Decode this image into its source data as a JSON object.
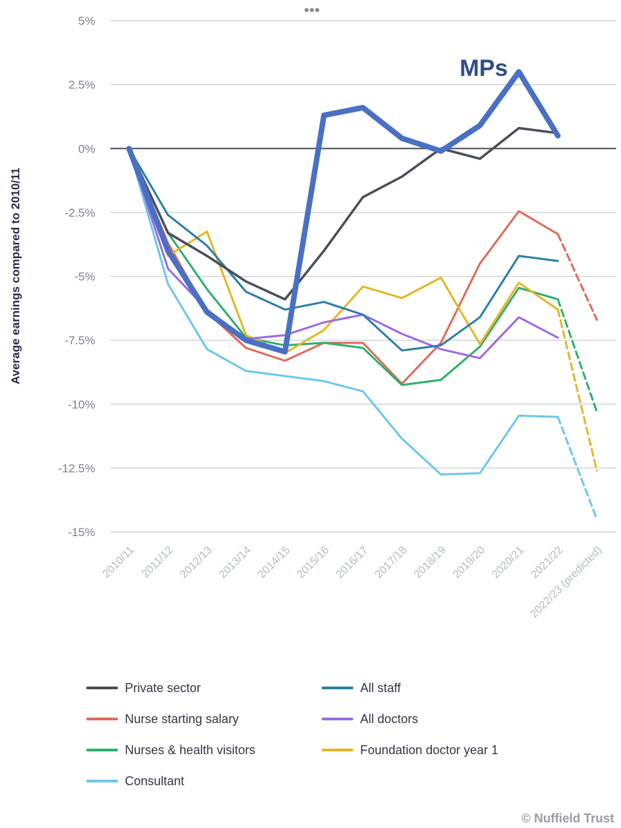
{
  "chart_data": {
    "type": "line",
    "ylabel": "Average earnings compared to 2010/11",
    "ylim": [
      -15,
      5
    ],
    "yticks": [
      5,
      2.5,
      0,
      -2.5,
      -5,
      -7.5,
      -10,
      -12.5,
      -15
    ],
    "ytick_labels": [
      "5%",
      "2.5%",
      "0%",
      "-2.5%",
      "-5%",
      "-7.5%",
      "-10%",
      "-12.5%",
      "-15%"
    ],
    "x": [
      "2010/11",
      "2011/12",
      "2012/13",
      "2013/14",
      "2014/15",
      "2015/16",
      "2016/17",
      "2017/18",
      "2018/19",
      "2019/20",
      "2020/21",
      "2021/22",
      "2022/23 (predicted)"
    ],
    "grid": true,
    "legend_position": "bottom",
    "series": [
      {
        "name": "Private sector",
        "color": "#4a4e5a",
        "width": 3.5,
        "values": [
          0,
          -3.3,
          -4.2,
          -5.2,
          -5.9,
          -4.0,
          -1.9,
          -1.1,
          0.0,
          -0.4,
          0.8,
          0.6,
          null
        ]
      },
      {
        "name": "All staff",
        "color": "#2a7fa6",
        "width": 3,
        "values": [
          0,
          -2.6,
          -3.8,
          -5.6,
          -6.3,
          -6.0,
          -6.5,
          -7.9,
          -7.7,
          -6.6,
          -4.2,
          -4.4,
          null
        ]
      },
      {
        "name": "Nurse starting salary",
        "color": "#e06a58",
        "width": 3,
        "values": [
          0,
          -3.7,
          -6.4,
          -7.8,
          -8.3,
          -7.6,
          -7.6,
          -9.2,
          -7.6,
          -4.5,
          -2.45,
          -3.35,
          -6.7
        ]
      },
      {
        "name": "All doctors",
        "color": "#9b6ae3",
        "width": 3,
        "values": [
          0,
          -4.7,
          -6.3,
          -7.45,
          -7.3,
          -6.8,
          -6.5,
          -7.25,
          -7.85,
          -8.2,
          -6.6,
          -7.4,
          null
        ]
      },
      {
        "name": "Nurses & health visitors",
        "color": "#2eaf6c",
        "width": 3,
        "values": [
          0,
          -3.3,
          -5.5,
          -7.4,
          -7.7,
          -7.6,
          -7.8,
          -9.25,
          -9.05,
          -7.75,
          -5.45,
          -5.9,
          -10.3
        ]
      },
      {
        "name": "Foundation doctor year 1",
        "color": "#e3b726",
        "width": 3,
        "values": [
          0,
          -4.2,
          -3.25,
          -7.3,
          -8.0,
          -7.1,
          -5.4,
          -5.85,
          -5.05,
          -7.65,
          -5.25,
          -6.3,
          -12.6
        ]
      },
      {
        "name": "Consultant",
        "color": "#6cc7ea",
        "width": 3,
        "values": [
          0,
          -5.3,
          -7.85,
          -8.7,
          -8.9,
          -9.1,
          -9.5,
          -11.35,
          -12.75,
          -12.7,
          -10.45,
          -10.5,
          -14.5
        ]
      },
      {
        "color": "#4a70c4",
        "width": 8,
        "values": [
          0,
          -4.0,
          -6.4,
          -7.5,
          -7.95,
          1.3,
          1.6,
          0.4,
          -0.1,
          0.9,
          3.0,
          0.5,
          null
        ]
      }
    ],
    "annotations": [
      {
        "text": "MPs",
        "x": "2020/21",
        "y": 3.0,
        "color": "#2f4e86"
      }
    ],
    "credit": "© Nuffield Trust"
  },
  "top_dots": "•••"
}
